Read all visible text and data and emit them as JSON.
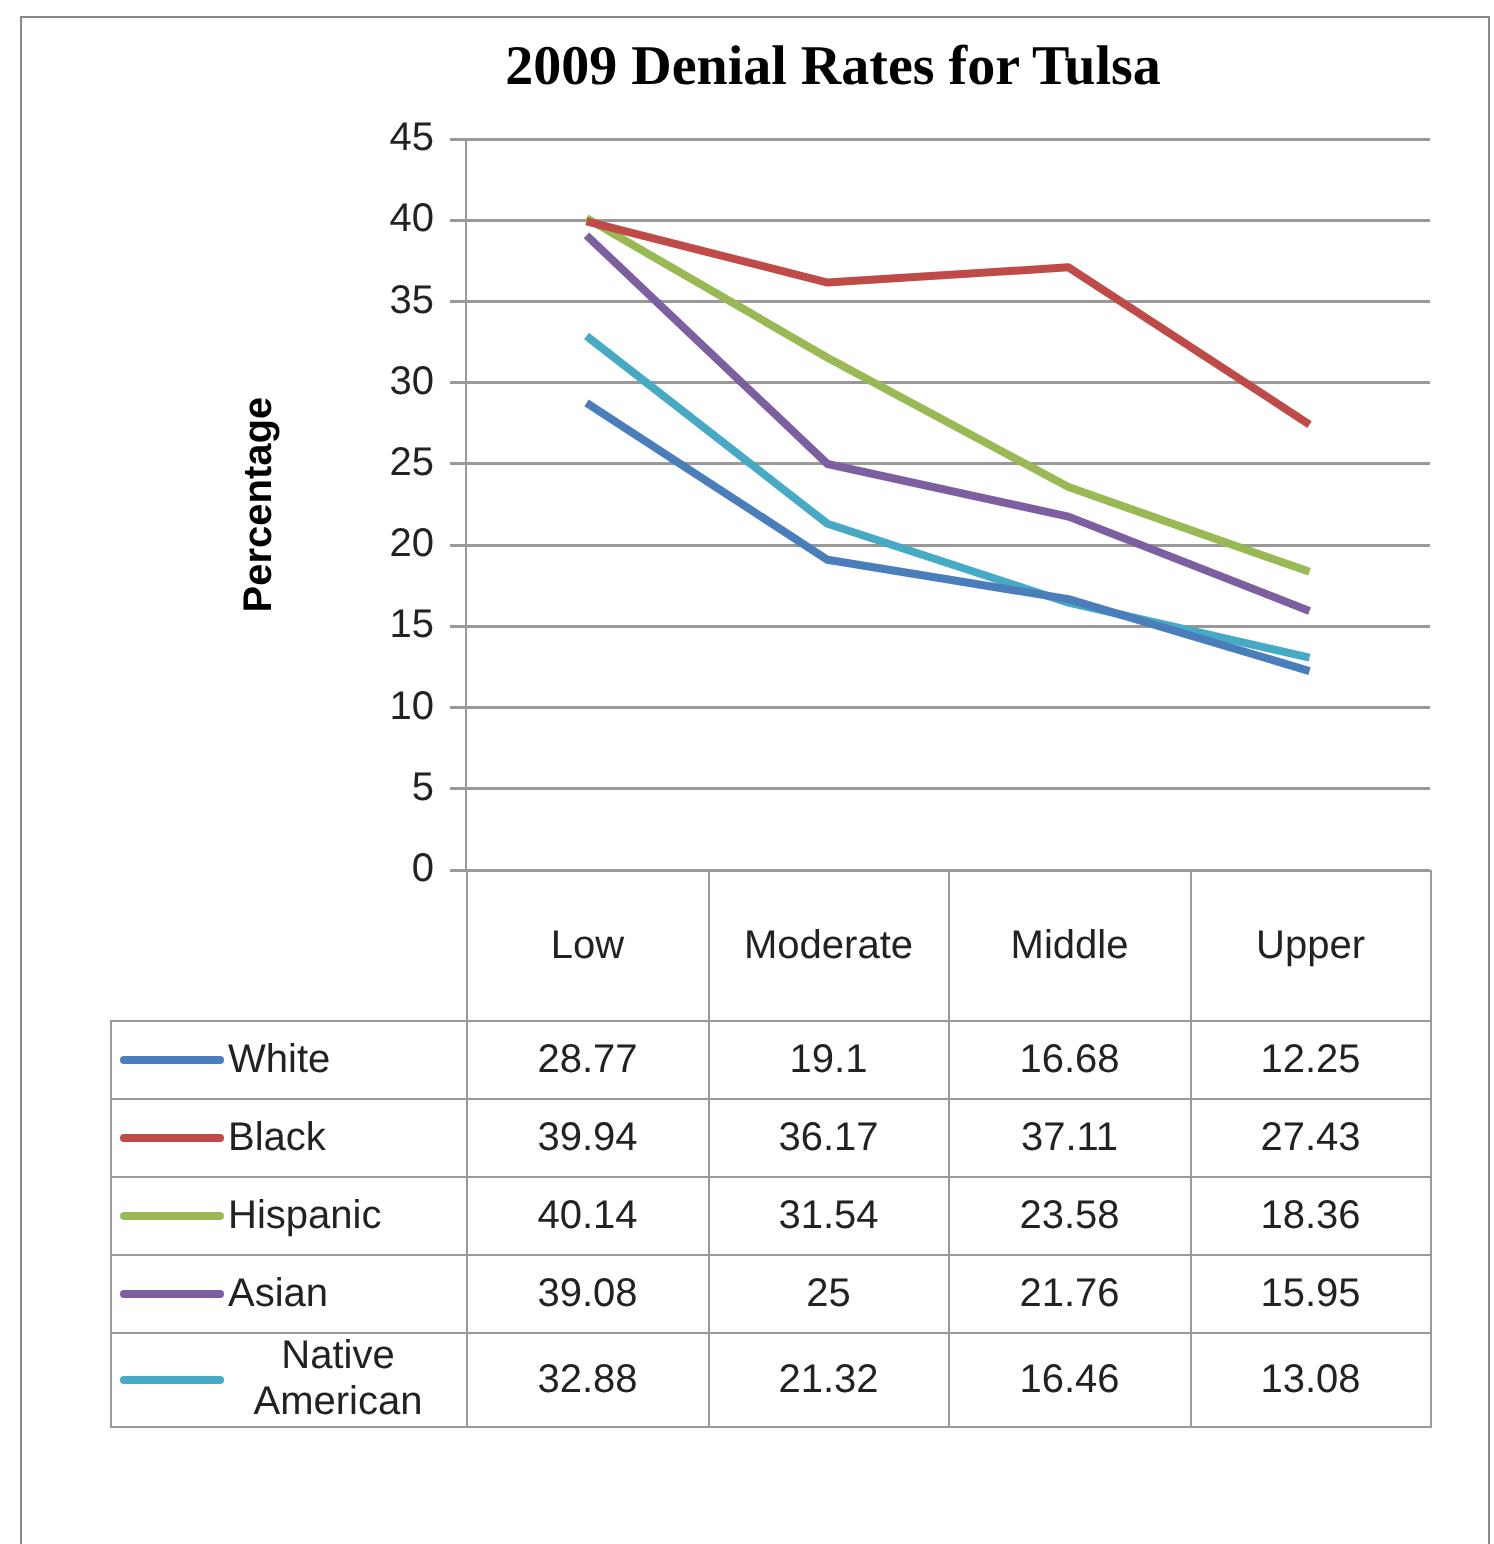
{
  "chart_data": {
    "type": "line",
    "title": "2009 Denial Rates for Tulsa",
    "ylabel": "Percentage",
    "categories": [
      "Low",
      "Moderate",
      "Middle",
      "Upper"
    ],
    "series": [
      {
        "name": "White",
        "color": "#4a7ebb",
        "values": [
          28.77,
          19.1,
          16.68,
          12.25
        ]
      },
      {
        "name": "Black",
        "color": "#be4b48",
        "values": [
          39.94,
          36.17,
          37.11,
          27.43
        ]
      },
      {
        "name": "Hispanic",
        "color": "#98b954",
        "values": [
          40.14,
          31.54,
          23.58,
          18.36
        ]
      },
      {
        "name": "Asian",
        "color": "#7d5fa0",
        "values": [
          39.08,
          25,
          21.76,
          15.95
        ]
      },
      {
        "name": "Native American",
        "color": "#46aac5",
        "values": [
          32.88,
          21.32,
          16.46,
          13.08
        ]
      }
    ],
    "ylim": [
      0,
      45
    ],
    "yticks": [
      0,
      5,
      10,
      15,
      20,
      25,
      30,
      35,
      40,
      45
    ],
    "grid": "y",
    "legend": "bottom",
    "data_labels": true,
    "marker": "none",
    "line_style": "solid"
  }
}
